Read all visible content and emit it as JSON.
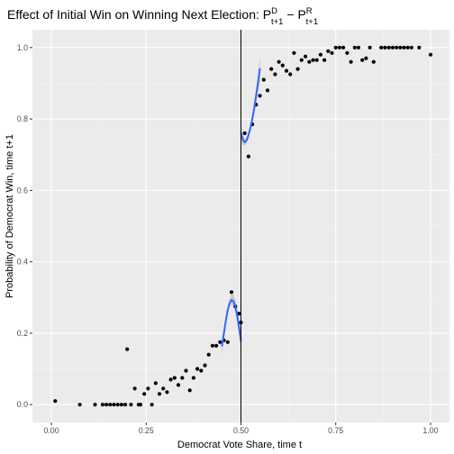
{
  "chart_data": {
    "type": "scatter",
    "title": {
      "main": "Effect of Initial Win on Winning Next Election: ",
      "p1": "P",
      "p1_sup": "D",
      "p1_sub": "t+1",
      "minus": " − ",
      "p2": "P",
      "p2_sup": "R",
      "p2_sub": "t+1"
    },
    "xlabel": "Democrat Vote Share, time t",
    "ylabel": "Probability of Democrat Win, time t+1",
    "xlim": [
      -0.05,
      1.05
    ],
    "ylim": [
      -0.05,
      1.05
    ],
    "x_ticks": [
      0.0,
      0.25,
      0.5,
      0.75,
      1.0
    ],
    "x_tick_labels": [
      "0.00",
      "0.25",
      "0.50",
      "0.75",
      "1.00"
    ],
    "y_ticks": [
      0.0,
      0.2,
      0.4,
      0.6,
      0.8,
      1.0
    ],
    "y_tick_labels": [
      "0.0",
      "0.2",
      "0.4",
      "0.6",
      "0.8",
      "1.0"
    ],
    "cutoff": 0.5,
    "grid": true,
    "colors": {
      "panel": "#ebebeb",
      "grid_major": "#ffffff",
      "grid_minor": "#f5f5f5",
      "points": "#000000",
      "fit": "#3366ff",
      "ribbon": "#999999",
      "cutoff": "#000000"
    },
    "points": [
      [
        0.01,
        0.01
      ],
      [
        0.075,
        0.0
      ],
      [
        0.115,
        0.0
      ],
      [
        0.135,
        0.0
      ],
      [
        0.145,
        0.0
      ],
      [
        0.155,
        0.0
      ],
      [
        0.165,
        0.0
      ],
      [
        0.175,
        0.0
      ],
      [
        0.185,
        0.0
      ],
      [
        0.195,
        0.0
      ],
      [
        0.2,
        0.155
      ],
      [
        0.21,
        0.0
      ],
      [
        0.22,
        0.045
      ],
      [
        0.23,
        0.0
      ],
      [
        0.235,
        0.0
      ],
      [
        0.245,
        0.03
      ],
      [
        0.255,
        0.045
      ],
      [
        0.265,
        0.0
      ],
      [
        0.275,
        0.06
      ],
      [
        0.285,
        0.03
      ],
      [
        0.295,
        0.045
      ],
      [
        0.305,
        0.035
      ],
      [
        0.315,
        0.07
      ],
      [
        0.325,
        0.075
      ],
      [
        0.335,
        0.055
      ],
      [
        0.345,
        0.075
      ],
      [
        0.355,
        0.095
      ],
      [
        0.365,
        0.04
      ],
      [
        0.375,
        0.075
      ],
      [
        0.385,
        0.1
      ],
      [
        0.395,
        0.095
      ],
      [
        0.405,
        0.11
      ],
      [
        0.415,
        0.14
      ],
      [
        0.425,
        0.165
      ],
      [
        0.435,
        0.165
      ],
      [
        0.445,
        0.175
      ],
      [
        0.455,
        0.18
      ],
      [
        0.465,
        0.175
      ],
      [
        0.475,
        0.315
      ],
      [
        0.485,
        0.275
      ],
      [
        0.495,
        0.255
      ],
      [
        0.5,
        0.23
      ],
      [
        0.51,
        0.76
      ],
      [
        0.52,
        0.695
      ],
      [
        0.53,
        0.785
      ],
      [
        0.54,
        0.84
      ],
      [
        0.55,
        0.865
      ],
      [
        0.56,
        0.91
      ],
      [
        0.57,
        0.88
      ],
      [
        0.58,
        0.94
      ],
      [
        0.59,
        0.925
      ],
      [
        0.6,
        0.96
      ],
      [
        0.61,
        0.95
      ],
      [
        0.62,
        0.935
      ],
      [
        0.63,
        0.925
      ],
      [
        0.64,
        0.985
      ],
      [
        0.65,
        0.94
      ],
      [
        0.66,
        0.965
      ],
      [
        0.67,
        0.975
      ],
      [
        0.68,
        0.96
      ],
      [
        0.69,
        0.965
      ],
      [
        0.7,
        0.965
      ],
      [
        0.71,
        0.98
      ],
      [
        0.72,
        0.965
      ],
      [
        0.73,
        0.99
      ],
      [
        0.74,
        0.985
      ],
      [
        0.75,
        1.0
      ],
      [
        0.76,
        1.0
      ],
      [
        0.77,
        1.0
      ],
      [
        0.78,
        0.985
      ],
      [
        0.79,
        0.96
      ],
      [
        0.8,
        1.0
      ],
      [
        0.81,
        1.0
      ],
      [
        0.82,
        0.965
      ],
      [
        0.83,
        0.97
      ],
      [
        0.84,
        1.0
      ],
      [
        0.85,
        0.96
      ],
      [
        0.87,
        1.0
      ],
      [
        0.88,
        1.0
      ],
      [
        0.89,
        1.0
      ],
      [
        0.9,
        1.0
      ],
      [
        0.91,
        1.0
      ],
      [
        0.92,
        1.0
      ],
      [
        0.93,
        1.0
      ],
      [
        0.94,
        1.0
      ],
      [
        0.95,
        1.0
      ],
      [
        0.97,
        1.0
      ],
      [
        1.0,
        0.98
      ]
    ],
    "fit_left": [
      [
        0.45,
        0.165
      ],
      [
        0.455,
        0.2
      ],
      [
        0.46,
        0.235
      ],
      [
        0.465,
        0.265
      ],
      [
        0.47,
        0.285
      ],
      [
        0.475,
        0.293
      ],
      [
        0.48,
        0.29
      ],
      [
        0.485,
        0.275
      ],
      [
        0.49,
        0.25
      ],
      [
        0.495,
        0.215
      ],
      [
        0.5,
        0.18
      ]
    ],
    "ribbon_left": [
      [
        0.45,
        0.14,
        0.19
      ],
      [
        0.455,
        0.185,
        0.215
      ],
      [
        0.46,
        0.225,
        0.245
      ],
      [
        0.465,
        0.257,
        0.273
      ],
      [
        0.47,
        0.275,
        0.295
      ],
      [
        0.475,
        0.28,
        0.31
      ],
      [
        0.48,
        0.275,
        0.308
      ],
      [
        0.485,
        0.257,
        0.293
      ],
      [
        0.49,
        0.23,
        0.27
      ],
      [
        0.495,
        0.19,
        0.24
      ],
      [
        0.5,
        0.15,
        0.21
      ]
    ],
    "fit_right": [
      [
        0.5,
        0.76
      ],
      [
        0.505,
        0.742
      ],
      [
        0.51,
        0.735
      ],
      [
        0.515,
        0.74
      ],
      [
        0.52,
        0.755
      ],
      [
        0.525,
        0.775
      ],
      [
        0.53,
        0.8
      ],
      [
        0.535,
        0.83
      ],
      [
        0.54,
        0.865
      ],
      [
        0.545,
        0.9
      ],
      [
        0.55,
        0.94
      ]
    ],
    "ribbon_right": [
      [
        0.5,
        0.735,
        0.785
      ],
      [
        0.505,
        0.727,
        0.757
      ],
      [
        0.51,
        0.725,
        0.745
      ],
      [
        0.515,
        0.732,
        0.748
      ],
      [
        0.52,
        0.746,
        0.764
      ],
      [
        0.525,
        0.765,
        0.785
      ],
      [
        0.53,
        0.789,
        0.811
      ],
      [
        0.535,
        0.815,
        0.845
      ],
      [
        0.54,
        0.845,
        0.885
      ],
      [
        0.545,
        0.875,
        0.925
      ],
      [
        0.55,
        0.905,
        0.975
      ]
    ]
  }
}
